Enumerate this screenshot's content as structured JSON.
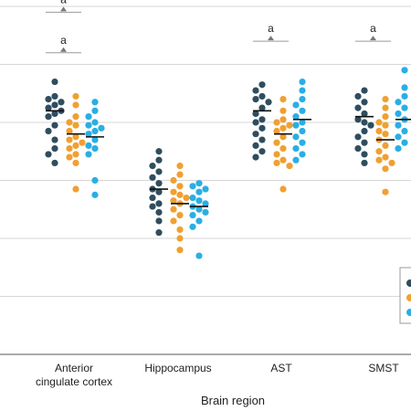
{
  "chart_data": {
    "type": "scatter",
    "xlabel": "Brain region",
    "ylabel": "",
    "title": "",
    "ylim": [
      0,
      6
    ],
    "grid": true,
    "legend": "right",
    "categories": [
      {
        "label_lines": [
          "Anterior",
          "cingulate cortex"
        ]
      },
      {
        "label_lines": [
          "Hippocampus"
        ]
      },
      {
        "label_lines": [
          "AST"
        ]
      },
      {
        "label_lines": [
          "SMST"
        ]
      }
    ],
    "colors": [
      "#2f4d5e",
      "#f0a030",
      "#29aee5"
    ],
    "series": [
      {
        "color": "#2f4d5e",
        "points": [
          [
            4.7,
            4.45,
            4.4,
            4.35,
            4.3,
            4.25,
            4.2,
            4.15,
            4.1,
            3.95,
            3.85,
            3.7,
            3.55,
            3.45,
            3.3
          ],
          [
            3.5,
            3.35,
            3.25,
            3.15,
            3.05,
            2.95,
            2.85,
            2.8,
            2.7,
            2.6,
            2.55,
            2.45,
            2.3,
            2.1
          ],
          [
            4.65,
            4.55,
            4.45,
            4.4,
            4.35,
            4.25,
            4.15,
            4.05,
            4.0,
            3.9,
            3.8,
            3.7,
            3.6,
            3.5,
            3.4
          ],
          [
            4.55,
            4.45,
            4.35,
            4.25,
            4.15,
            4.05,
            4.0,
            3.95,
            3.85,
            3.75,
            3.65,
            3.55,
            3.45,
            3.3
          ]
        ],
        "means": [
          4.2,
          2.85,
          4.2,
          4.1
        ]
      },
      {
        "color": "#f0a030",
        "points": [
          [
            4.45,
            4.3,
            4.1,
            4.0,
            3.95,
            3.85,
            3.75,
            3.7,
            3.65,
            3.6,
            3.55,
            3.45,
            3.4,
            3.3,
            2.85
          ],
          [
            3.25,
            3.1,
            3.0,
            2.9,
            2.8,
            2.75,
            2.7,
            2.65,
            2.6,
            2.5,
            2.4,
            2.3,
            2.15,
            2.0,
            1.8
          ],
          [
            4.4,
            4.2,
            4.05,
            4.0,
            3.95,
            3.9,
            3.85,
            3.75,
            3.65,
            3.55,
            3.45,
            3.35,
            3.3,
            3.25,
            2.85
          ],
          [
            4.4,
            4.25,
            4.1,
            4.0,
            3.95,
            3.85,
            3.8,
            3.7,
            3.6,
            3.5,
            3.4,
            3.35,
            3.3,
            3.2,
            2.8
          ]
        ],
        "means": [
          3.8,
          2.6,
          3.8,
          3.7
        ]
      },
      {
        "color": "#29aee5",
        "points": [
          [
            4.35,
            4.2,
            4.1,
            4.0,
            3.95,
            3.9,
            3.85,
            3.8,
            3.7,
            3.6,
            3.55,
            3.45,
            3.0,
            2.75
          ],
          [
            2.95,
            2.9,
            2.85,
            2.8,
            2.7,
            2.65,
            2.6,
            2.55,
            2.5,
            2.45,
            2.4,
            2.3,
            2.2,
            1.7
          ],
          [
            4.7,
            4.55,
            4.4,
            4.3,
            4.2,
            4.1,
            4.0,
            3.95,
            3.85,
            3.75,
            3.65,
            3.55,
            3.45,
            3.35
          ],
          [
            4.9,
            4.6,
            4.45,
            4.35,
            4.25,
            4.15,
            4.05,
            3.95,
            3.85,
            3.75,
            3.65,
            3.55
          ]
        ],
        "means": [
          3.75,
          2.55,
          4.05,
          4.05
        ]
      }
    ],
    "significance": [
      {
        "category": 0,
        "label": "a",
        "level": 5.9
      },
      {
        "category": 0,
        "label": "a",
        "level": 5.2
      },
      {
        "category": 2,
        "label": "a",
        "level": 5.4
      },
      {
        "category": 3,
        "label": "a",
        "level": 5.4
      }
    ]
  }
}
